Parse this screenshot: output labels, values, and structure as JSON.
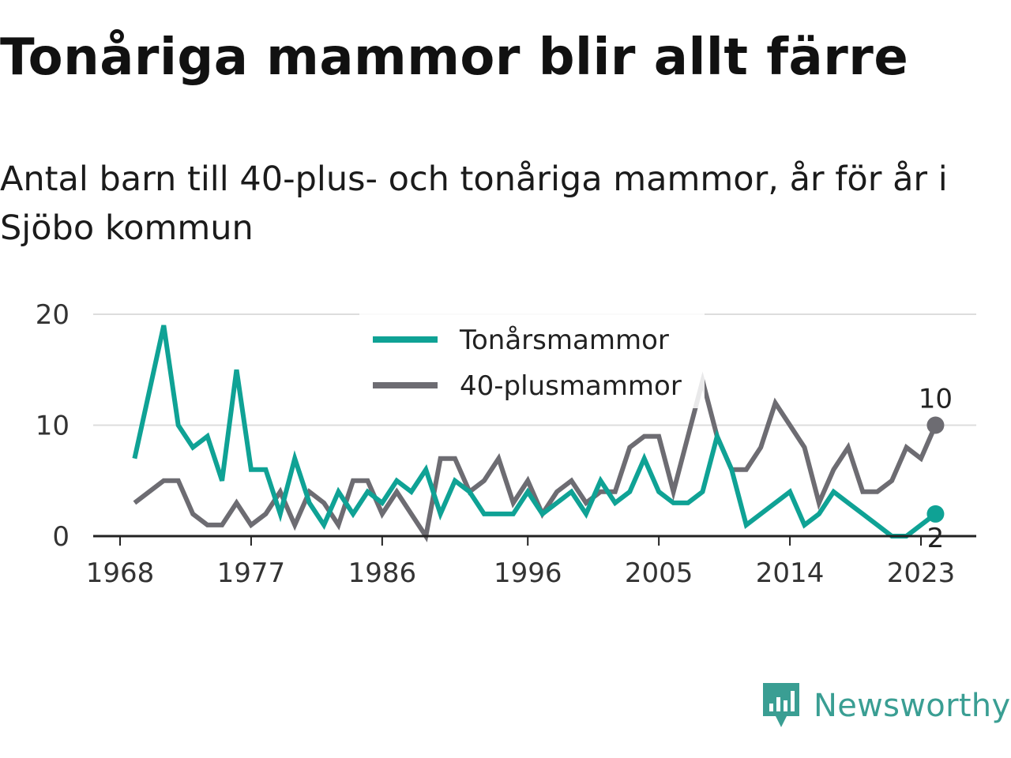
{
  "title": "Tonåriga mammor blir allt färre",
  "subtitle": "Antal barn till 40-plus- och tonåriga mammor, år för år i Sjöbo kommun",
  "brand": {
    "name": "Newsworthy",
    "icon": "newsworthy-chart-bubble-icon"
  },
  "colors": {
    "teen": "#0fa295",
    "plus40": "#6d6c72",
    "grid": "#dddddd",
    "axis": "#222222"
  },
  "chart_data": {
    "type": "line",
    "title": "Tonåriga mammor blir allt färre",
    "ylim": [
      0,
      20
    ],
    "yticks": [
      "0",
      "10",
      "20"
    ],
    "xticks": [
      "1968",
      "1977",
      "1986",
      "1996",
      "2005",
      "2014",
      "2023"
    ],
    "x_tick_years": [
      1968,
      1977,
      1986,
      1996,
      2005,
      2014,
      2023
    ],
    "x": [
      1969,
      1970,
      1971,
      1972,
      1973,
      1974,
      1975,
      1976,
      1977,
      1978,
      1979,
      1980,
      1981,
      1982,
      1983,
      1984,
      1985,
      1986,
      1987,
      1988,
      1989,
      1990,
      1991,
      1992,
      1993,
      1994,
      1995,
      1996,
      1997,
      1998,
      1999,
      2000,
      2001,
      2002,
      2003,
      2004,
      2005,
      2006,
      2007,
      2008,
      2009,
      2010,
      2011,
      2012,
      2013,
      2014,
      2015,
      2016,
      2017,
      2018,
      2019,
      2020,
      2021,
      2022,
      2023,
      2024
    ],
    "grid": true,
    "legend_position": "top-center",
    "series": [
      {
        "name": "Tonårsmammor",
        "color": "#0fa295",
        "values": [
          7,
          13,
          19,
          10,
          8,
          9,
          5,
          15,
          6,
          6,
          2,
          7,
          3,
          1,
          4,
          2,
          4,
          3,
          5,
          4,
          6,
          2,
          5,
          4,
          2,
          2,
          2,
          4,
          2,
          3,
          4,
          2,
          5,
          3,
          4,
          7,
          4,
          3,
          3,
          4,
          9,
          6,
          1,
          2,
          3,
          4,
          1,
          2,
          4,
          3,
          2,
          1,
          0,
          0,
          1,
          2
        ],
        "end_label": "2"
      },
      {
        "name": "40-plusmammor",
        "color": "#6d6c72",
        "values": [
          3,
          4,
          5,
          5,
          2,
          1,
          1,
          3,
          1,
          2,
          4,
          1,
          4,
          3,
          1,
          5,
          5,
          2,
          4,
          2,
          0,
          7,
          7,
          4,
          5,
          7,
          3,
          5,
          2,
          4,
          5,
          3,
          4,
          4,
          8,
          9,
          9,
          4,
          9,
          14,
          9,
          6,
          6,
          8,
          12,
          10,
          8,
          3,
          6,
          8,
          4,
          4,
          5,
          8,
          7,
          10
        ],
        "end_label": "10"
      }
    ]
  }
}
